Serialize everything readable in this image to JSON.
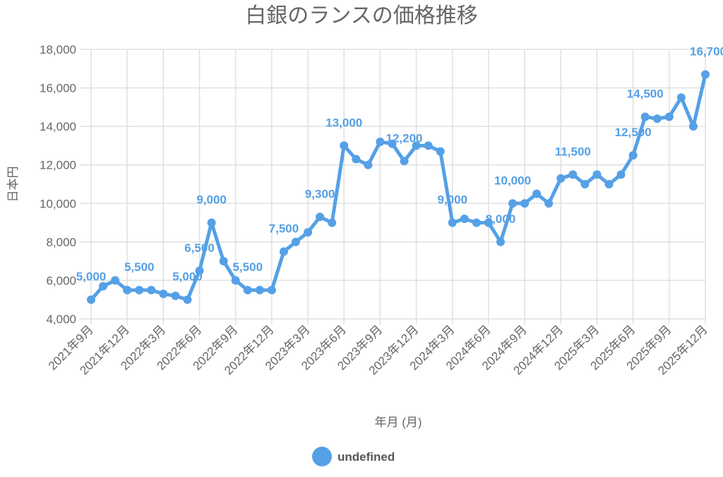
{
  "chart_data": {
    "type": "line",
    "title": "白銀のランスの価格推移",
    "xlabel": "年月 (月)",
    "ylabel": "日本円",
    "ylim": [
      4000,
      18000
    ],
    "yticks": [
      "4,000",
      "6,000",
      "8,000",
      "10,000",
      "12,000",
      "14,000",
      "16,000",
      "18,000"
    ],
    "xtick_labels": [
      "2021年9月",
      "2021年12月",
      "2022年3月",
      "2022年6月",
      "2022年9月",
      "2022年12月",
      "2023年3月",
      "2023年6月",
      "2023年9月",
      "2023年12月",
      "2024年3月",
      "2024年6月",
      "2024年9月",
      "2024年12月",
      "2025年3月",
      "2025年6月",
      "2025年9月",
      "2025年12月"
    ],
    "grid": true,
    "legend": {
      "position": "bottom",
      "entries": [
        "undefined"
      ]
    },
    "series": [
      {
        "name": "undefined",
        "color": "#55a0e6",
        "values": [
          5000,
          5700,
          6000,
          5500,
          5500,
          5500,
          5300,
          5200,
          5000,
          6500,
          9000,
          7000,
          6000,
          5500,
          5500,
          5500,
          7500,
          8000,
          8500,
          9300,
          9000,
          13000,
          12300,
          12000,
          13200,
          13100,
          12200,
          13000,
          13000,
          12700,
          9000,
          9200,
          9000,
          9000,
          8000,
          10000,
          10000,
          10500,
          10000,
          11300,
          11500,
          11000,
          11500,
          11000,
          11500,
          12500,
          14500,
          14400,
          14500,
          15500,
          14000,
          16700
        ]
      }
    ],
    "data_labels": [
      {
        "index": 0,
        "text": "5,000"
      },
      {
        "index": 4,
        "text": "5,500"
      },
      {
        "index": 8,
        "text": "5,000"
      },
      {
        "index": 9,
        "text": "6,500"
      },
      {
        "index": 10,
        "text": "9,000"
      },
      {
        "index": 13,
        "text": "5,500"
      },
      {
        "index": 16,
        "text": "7,500"
      },
      {
        "index": 19,
        "text": "9,300"
      },
      {
        "index": 21,
        "text": "13,000"
      },
      {
        "index": 26,
        "text": "12,200"
      },
      {
        "index": 30,
        "text": "9,000"
      },
      {
        "index": 34,
        "text": "8,000"
      },
      {
        "index": 35,
        "text": "10,000"
      },
      {
        "index": 40,
        "text": "11,500"
      },
      {
        "index": 45,
        "text": "12,500"
      },
      {
        "index": 46,
        "text": "14,500"
      },
      {
        "index": 51,
        "text": "16,700"
      }
    ]
  }
}
